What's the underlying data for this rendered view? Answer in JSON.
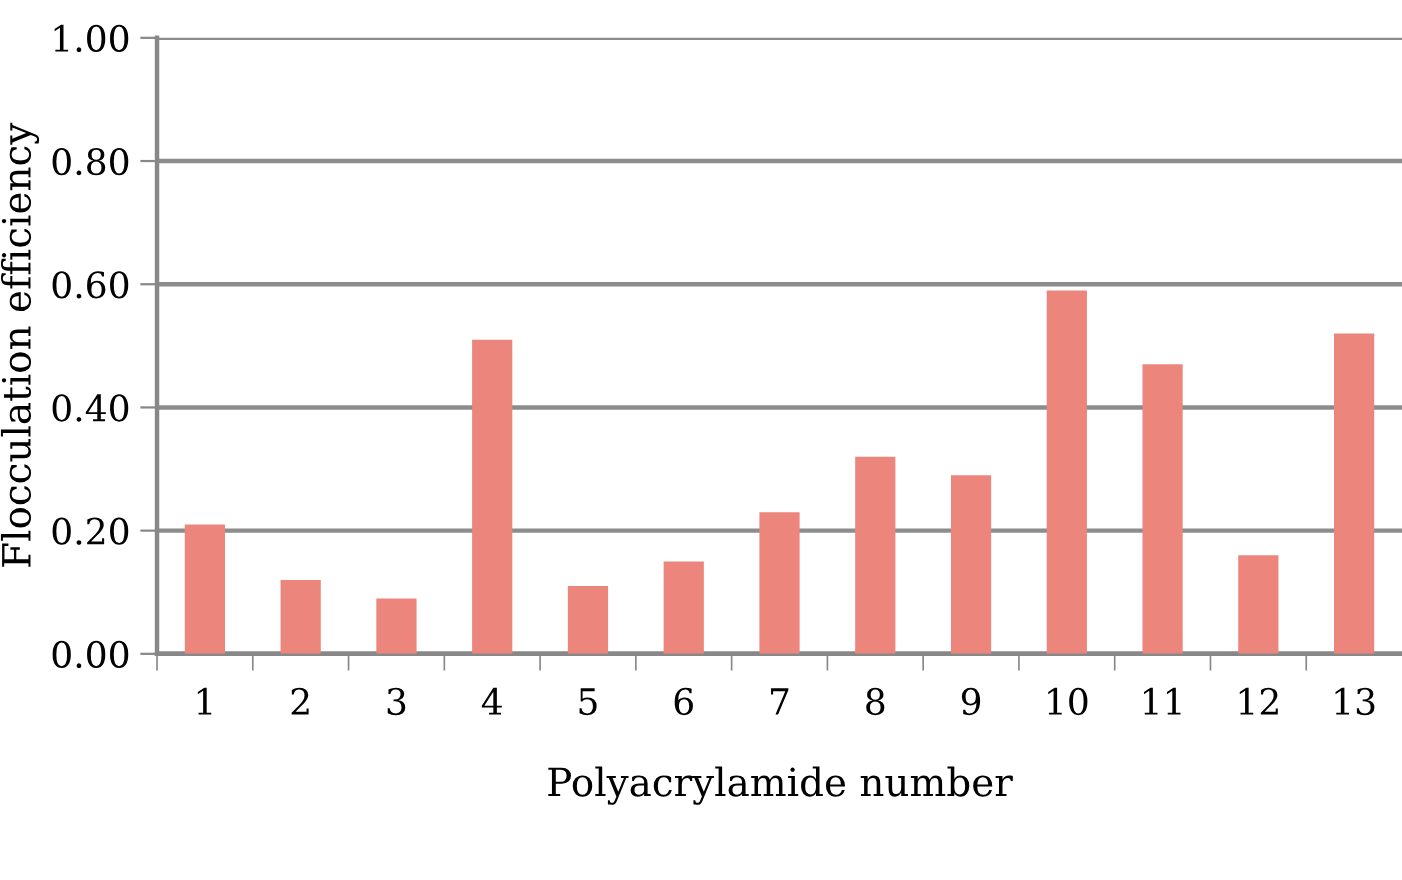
{
  "chart_data": {
    "type": "bar",
    "xlabel": "Polyacrylamide number",
    "ylabel": "Flocculation efficiency",
    "categories": [
      "1",
      "2",
      "3",
      "4",
      "5",
      "6",
      "7",
      "8",
      "9",
      "10",
      "11",
      "12",
      "13"
    ],
    "values": [
      0.21,
      0.12,
      0.09,
      0.51,
      0.11,
      0.15,
      0.23,
      0.32,
      0.29,
      0.59,
      0.47,
      0.16,
      0.52
    ],
    "color": "#ec857c",
    "ylim": [
      0,
      1
    ],
    "yticks": [
      {
        "value": 0,
        "label": "0.00"
      },
      {
        "value": 0.2,
        "label": "0.20"
      },
      {
        "value": 0.4,
        "label": "0.40"
      },
      {
        "value": 0.6,
        "label": "0.60"
      },
      {
        "value": 0.8,
        "label": "0.80"
      },
      {
        "value": 1,
        "label": "1.00"
      }
    ],
    "grid": "y",
    "legend": false
  }
}
